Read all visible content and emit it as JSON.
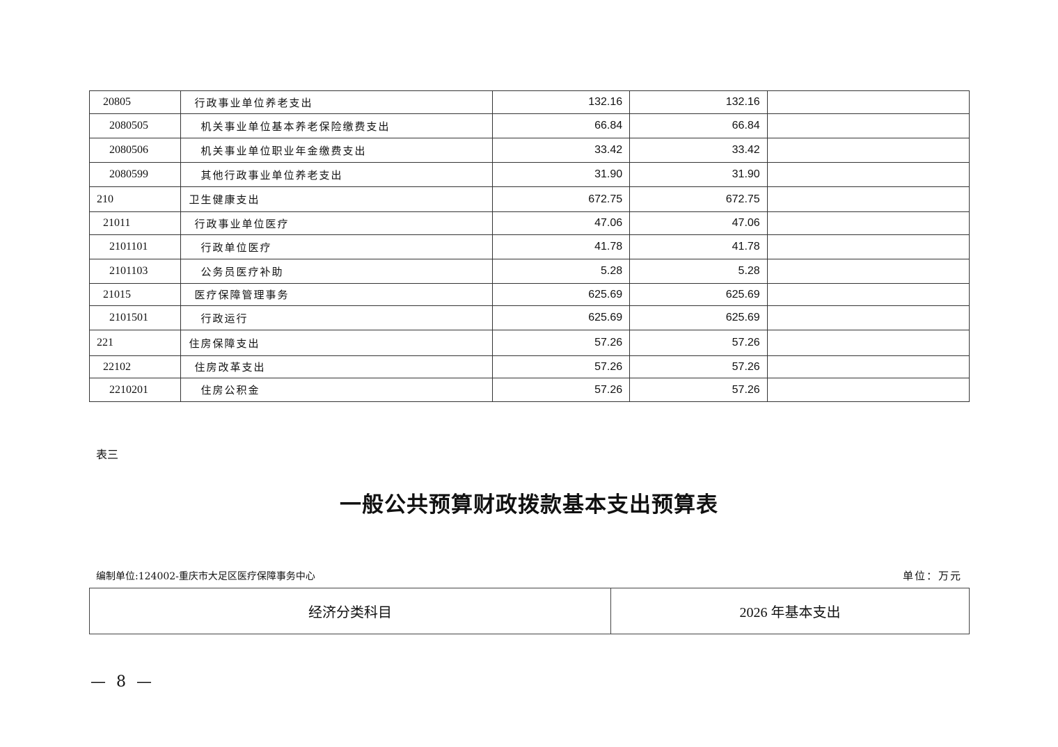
{
  "table_top": {
    "rows": [
      {
        "code": "20805",
        "name": "行政事业单位养老支出",
        "v1": "132.16",
        "v2": "132.16",
        "level": 1
      },
      {
        "code": "2080505",
        "name": "机关事业单位基本养老保险缴费支出",
        "v1": "66.84",
        "v2": "66.84",
        "level": 2
      },
      {
        "code": "2080506",
        "name": "机关事业单位职业年金缴费支出",
        "v1": "33.42",
        "v2": "33.42",
        "level": 2
      },
      {
        "code": "2080599",
        "name": "其他行政事业单位养老支出",
        "v1": "31.90",
        "v2": "31.90",
        "level": 2
      },
      {
        "code": "210",
        "name": "卫生健康支出",
        "v1": "672.75",
        "v2": "672.75",
        "level": 0
      },
      {
        "code": "21011",
        "name": "行政事业单位医疗",
        "v1": "47.06",
        "v2": "47.06",
        "level": 1
      },
      {
        "code": "2101101",
        "name": "行政单位医疗",
        "v1": "41.78",
        "v2": "41.78",
        "level": 2
      },
      {
        "code": "2101103",
        "name": "公务员医疗补助",
        "v1": "5.28",
        "v2": "5.28",
        "level": 2
      },
      {
        "code": "21015",
        "name": "医疗保障管理事务",
        "v1": "625.69",
        "v2": "625.69",
        "level": 1
      },
      {
        "code": "2101501",
        "name": "行政运行",
        "v1": "625.69",
        "v2": "625.69",
        "level": 2
      },
      {
        "code": "221",
        "name": "住房保障支出",
        "v1": "57.26",
        "v2": "57.26",
        "level": 0
      },
      {
        "code": "22102",
        "name": "住房改革支出",
        "v1": "57.26",
        "v2": "57.26",
        "level": 1
      },
      {
        "code": "2210201",
        "name": "住房公积金",
        "v1": "57.26",
        "v2": "57.26",
        "level": 2
      }
    ]
  },
  "section_label": "表三",
  "title": "一般公共预算财政拨款基本支出预算表",
  "org": "编制单位:124002-重庆市大足区医疗保障事务中心",
  "unit": "单位：万元",
  "table_bottom": {
    "headers": [
      "经济分类科目",
      "2026 年基本支出"
    ]
  },
  "page_number": "— 8 —"
}
